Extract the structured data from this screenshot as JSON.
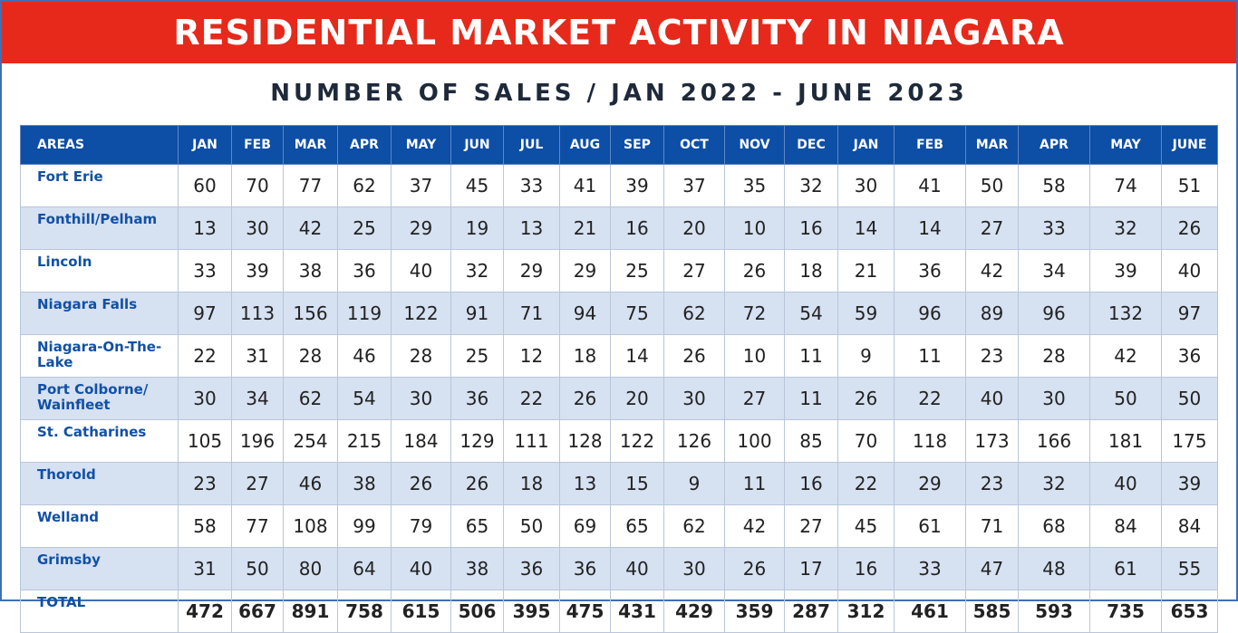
{
  "banner_title": "RESIDENTIAL MARKET ACTIVITY IN NIAGARA",
  "subtitle": "NUMBER OF SALES / JAN 2022 - JUNE 2023",
  "colors": {
    "banner": "#e6291b",
    "header": "#0d4ea6",
    "alt_row": "#d6e1f1",
    "area_text": "#1250a5"
  },
  "chart_data": {
    "type": "table",
    "title": "RESIDENTIAL MARKET ACTIVITY IN NIAGARA",
    "subtitle": "NUMBER OF SALES / JAN 2022 - JUNE 2023",
    "area_header": "AREAS",
    "columns": [
      "JAN",
      "FEB",
      "MAR",
      "APR",
      "MAY",
      "JUN",
      "JUL",
      "AUG",
      "SEP",
      "OCT",
      "NOV",
      "DEC",
      "JAN",
      "FEB",
      "MAR",
      "APR",
      "MAY",
      "JUNE"
    ],
    "rows": [
      {
        "area": "Fort Erie",
        "values": [
          60,
          70,
          77,
          62,
          37,
          45,
          33,
          41,
          39,
          37,
          35,
          32,
          30,
          41,
          50,
          58,
          74,
          51
        ]
      },
      {
        "area": "Fonthill/Pelham",
        "values": [
          13,
          30,
          42,
          25,
          29,
          19,
          13,
          21,
          16,
          20,
          10,
          16,
          14,
          14,
          27,
          33,
          32,
          26
        ]
      },
      {
        "area": "Lincoln",
        "values": [
          33,
          39,
          38,
          36,
          40,
          32,
          29,
          29,
          25,
          27,
          26,
          18,
          21,
          36,
          42,
          34,
          39,
          40
        ]
      },
      {
        "area": "Niagara Falls",
        "values": [
          97,
          113,
          156,
          119,
          122,
          91,
          71,
          94,
          75,
          62,
          72,
          54,
          59,
          96,
          89,
          96,
          132,
          97
        ]
      },
      {
        "area": "Niagara-On-The-Lake",
        "values": [
          22,
          31,
          28,
          46,
          28,
          25,
          12,
          18,
          14,
          26,
          10,
          11,
          9,
          11,
          23,
          28,
          42,
          36
        ]
      },
      {
        "area": "Port Colborne/ Wainfleet",
        "values": [
          30,
          34,
          62,
          54,
          30,
          36,
          22,
          26,
          20,
          30,
          27,
          11,
          26,
          22,
          40,
          30,
          50,
          50
        ]
      },
      {
        "area": "St. Catharines",
        "values": [
          105,
          196,
          254,
          215,
          184,
          129,
          111,
          128,
          122,
          126,
          100,
          85,
          70,
          118,
          173,
          166,
          181,
          175
        ]
      },
      {
        "area": "Thorold",
        "values": [
          23,
          27,
          46,
          38,
          26,
          26,
          18,
          13,
          15,
          9,
          11,
          16,
          22,
          29,
          23,
          32,
          40,
          39
        ]
      },
      {
        "area": "Welland",
        "values": [
          58,
          77,
          108,
          99,
          79,
          65,
          50,
          69,
          65,
          62,
          42,
          27,
          45,
          61,
          71,
          68,
          84,
          84
        ]
      },
      {
        "area": "Grimsby",
        "values": [
          31,
          50,
          80,
          64,
          40,
          38,
          36,
          36,
          40,
          30,
          26,
          17,
          16,
          33,
          47,
          48,
          61,
          55
        ]
      }
    ],
    "total": {
      "area": "TOTAL",
      "values": [
        472,
        667,
        891,
        758,
        615,
        506,
        395,
        475,
        431,
        429,
        359,
        287,
        312,
        461,
        585,
        593,
        735,
        653
      ]
    }
  }
}
